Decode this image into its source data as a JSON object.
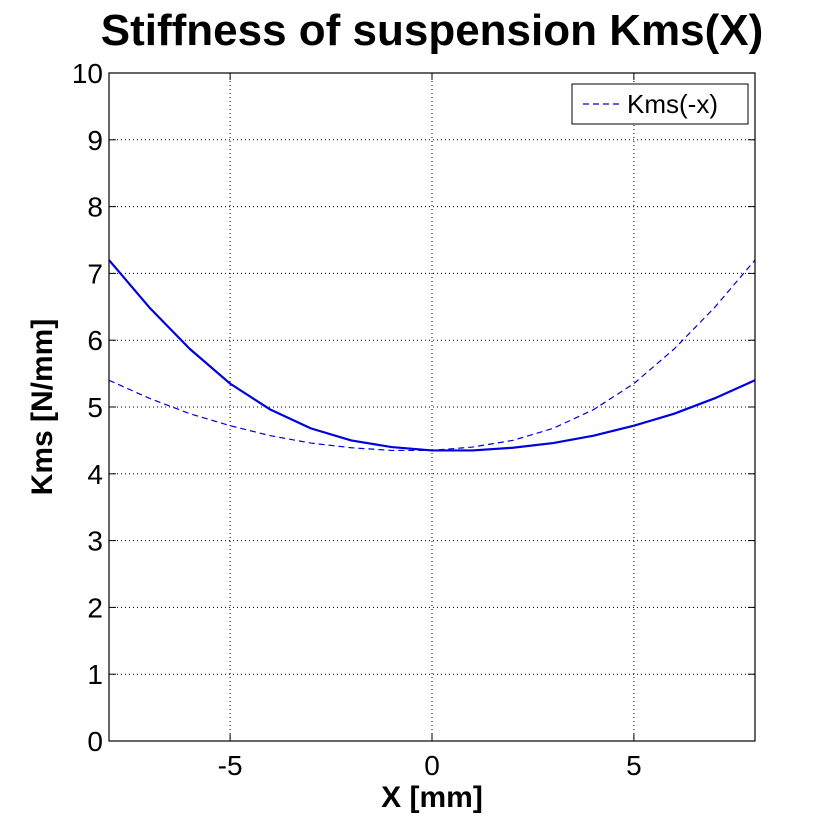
{
  "chart_data": {
    "type": "line",
    "title": "Stiffness of suspension Kms(X)",
    "xlabel": "X [mm]",
    "ylabel": "Kms [N/mm]",
    "xlim": [
      -8,
      8
    ],
    "ylim": [
      0,
      10
    ],
    "xticks": [
      -5,
      0,
      5
    ],
    "xtick_labels": [
      "-5",
      "0",
      "5"
    ],
    "yticks": [
      0,
      1,
      2,
      3,
      4,
      5,
      6,
      7,
      8,
      9,
      10
    ],
    "ytick_labels": [
      "0",
      "1",
      "2",
      "3",
      "4",
      "5",
      "6",
      "7",
      "8",
      "9",
      "10"
    ],
    "grid": true,
    "legend_position": "top-right",
    "series": [
      {
        "style": "solid",
        "color": "#0000dd",
        "x": [
          -8,
          -7,
          -6,
          -5,
          -4,
          -3,
          -2,
          -1,
          0,
          1,
          2,
          3,
          4,
          5,
          6,
          7,
          8
        ],
        "y": [
          7.2,
          6.49,
          5.87,
          5.35,
          4.96,
          4.68,
          4.5,
          4.4,
          4.35,
          4.35,
          4.39,
          4.46,
          4.57,
          4.72,
          4.9,
          5.13,
          5.4
        ]
      },
      {
        "name": "Kms(-x)",
        "style": "dashed",
        "color": "#0000dd",
        "x": [
          -8,
          -7,
          -6,
          -5,
          -4,
          -3,
          -2,
          -1,
          0,
          1,
          2,
          3,
          4,
          5,
          6,
          7,
          8
        ],
        "y": [
          5.4,
          5.13,
          4.9,
          4.72,
          4.57,
          4.46,
          4.39,
          4.35,
          4.35,
          4.4,
          4.5,
          4.68,
          4.96,
          5.35,
          5.87,
          6.49,
          7.2
        ]
      }
    ]
  }
}
